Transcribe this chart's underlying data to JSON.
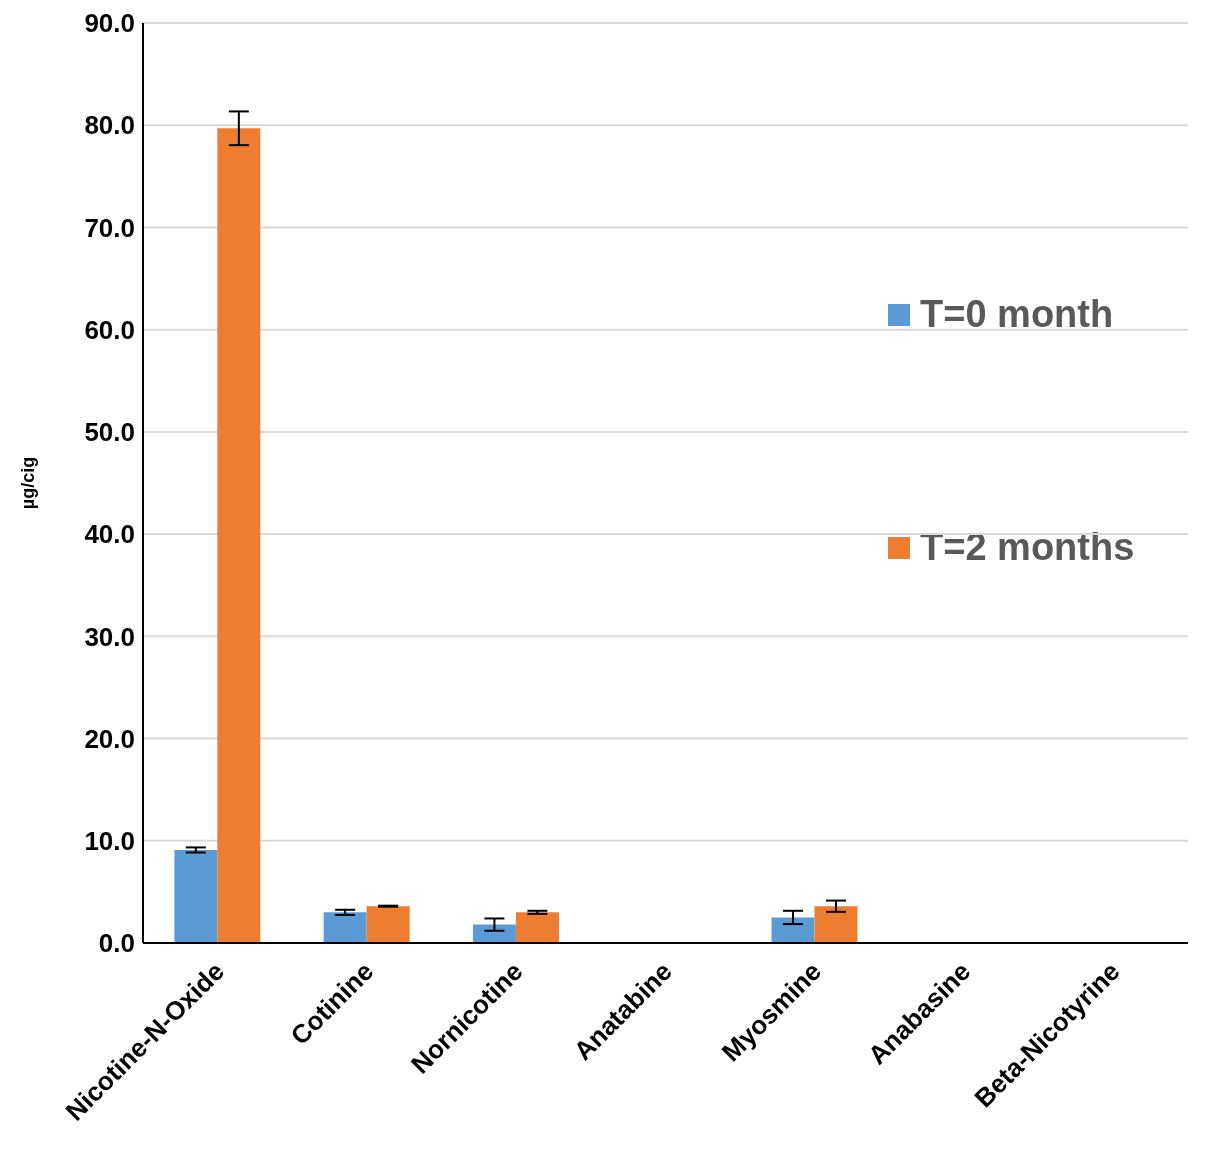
{
  "chart_data": {
    "type": "bar",
    "ylabel": "µg/cig",
    "categories": [
      "Nicotine-N-Oxide",
      "Cotinine",
      "Nornicotine",
      "Anatabine",
      "Myosmine",
      "Anabasine",
      "Beta-Nicotyrine"
    ],
    "series": [
      {
        "name": "T=0 month",
        "color": "#5b9bd5",
        "values": [
          9.1,
          3.0,
          1.8,
          0,
          2.5,
          0,
          0
        ],
        "errors": [
          0.25,
          0.25,
          0.6,
          null,
          0.65,
          null,
          null
        ]
      },
      {
        "name": "T=2 months",
        "color": "#ed7d31",
        "values": [
          79.7,
          3.6,
          3.0,
          0,
          3.6,
          0,
          0
        ],
        "errors": [
          1.65,
          0.05,
          0.15,
          null,
          0.55,
          null,
          null
        ]
      }
    ],
    "ylim": [
      0,
      90
    ],
    "yticks": [
      {
        "value": 0,
        "label": "0.0"
      },
      {
        "value": 10,
        "label": "10.0"
      },
      {
        "value": 20,
        "label": "20.0"
      },
      {
        "value": 30,
        "label": "30.0"
      },
      {
        "value": 40,
        "label": "40.0"
      },
      {
        "value": 50,
        "label": "50.0"
      },
      {
        "value": 60,
        "label": "60.0"
      },
      {
        "value": 70,
        "label": "70.0"
      },
      {
        "value": 80,
        "label": "80.0"
      },
      {
        "value": 90,
        "label": "90.0"
      }
    ],
    "grid": "y",
    "legend": "right"
  }
}
